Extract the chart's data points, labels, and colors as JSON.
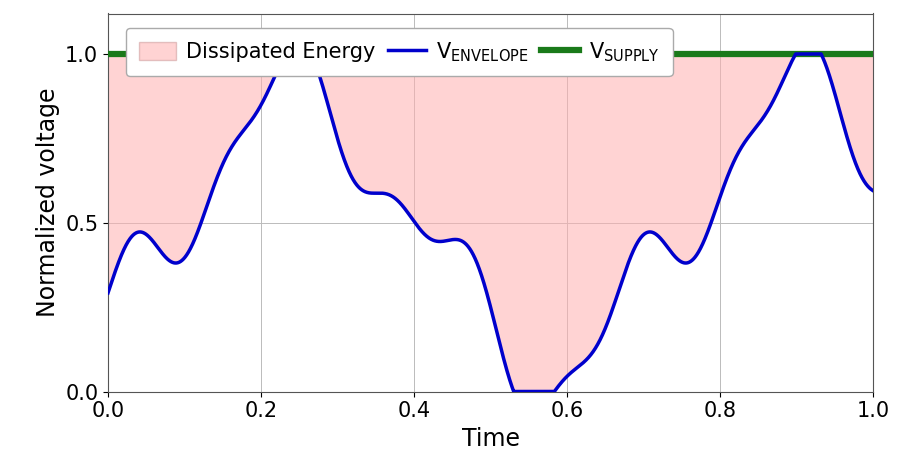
{
  "title": "",
  "xlabel": "Time",
  "ylabel": "Normalized voltage",
  "xlim": [
    0,
    1
  ],
  "ylim": [
    0,
    1.12
  ],
  "yticks": [
    0,
    0.5,
    1
  ],
  "xticks": [
    0,
    0.2,
    0.4,
    0.6,
    0.8,
    1.0
  ],
  "supply_voltage": 1.0,
  "supply_color": "#1a7a1a",
  "envelope_color": "#0000CC",
  "fill_color": "#FFB0B0",
  "fill_alpha": 0.55,
  "envelope_linewidth": 2.5,
  "supply_linewidth": 4.5,
  "grid_color": "#BBBBBB",
  "legend_fontsize": 15,
  "axis_label_fontsize": 17,
  "tick_fontsize": 15,
  "background_color": "#FFFFFF"
}
